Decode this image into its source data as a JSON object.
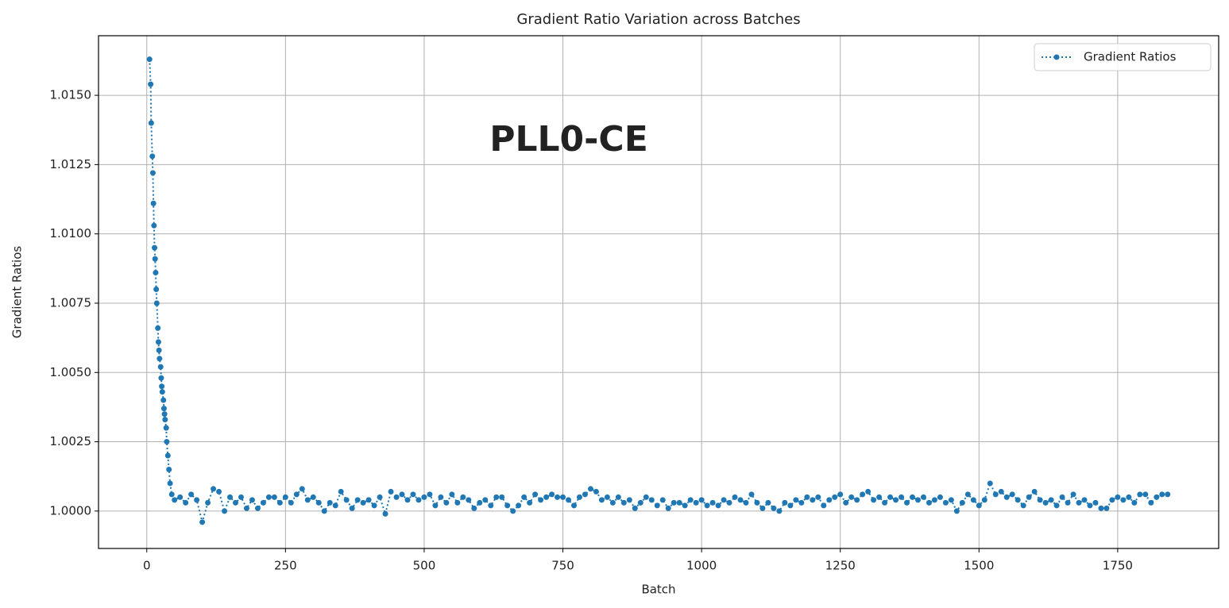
{
  "chart_data": {
    "type": "line",
    "title": "Gradient Ratio Variation across Batches",
    "x_label": "Batch",
    "y_label": "Gradient Ratios",
    "annotation": "PLL0-CE",
    "x": [
      5,
      7,
      8,
      10,
      11,
      12,
      13,
      14,
      15,
      16,
      17,
      18,
      20,
      21,
      22,
      23,
      25,
      26,
      27,
      28,
      30,
      31,
      32,
      33,
      35,
      36,
      38,
      40,
      42,
      45,
      50,
      60,
      70,
      80,
      90,
      100,
      110,
      120,
      130,
      140,
      150,
      160,
      170,
      180,
      190,
      200,
      210,
      220,
      230,
      240,
      250,
      260,
      270,
      280,
      290,
      300,
      310,
      320,
      330,
      340,
      350,
      360,
      370,
      380,
      390,
      400,
      410,
      420,
      430,
      440,
      450,
      460,
      470,
      480,
      490,
      500,
      510,
      520,
      530,
      540,
      550,
      560,
      570,
      580,
      590,
      600,
      610,
      620,
      630,
      640,
      650,
      660,
      670,
      680,
      690,
      700,
      710,
      720,
      730,
      740,
      750,
      760,
      770,
      780,
      790,
      800,
      810,
      820,
      830,
      840,
      850,
      860,
      870,
      880,
      890,
      900,
      910,
      920,
      930,
      940,
      950,
      960,
      970,
      980,
      990,
      1000,
      1010,
      1020,
      1030,
      1040,
      1050,
      1060,
      1070,
      1080,
      1090,
      1100,
      1110,
      1120,
      1130,
      1140,
      1150,
      1160,
      1170,
      1180,
      1190,
      1200,
      1210,
      1220,
      1230,
      1240,
      1250,
      1260,
      1270,
      1280,
      1290,
      1300,
      1310,
      1320,
      1330,
      1340,
      1350,
      1360,
      1370,
      1380,
      1390,
      1400,
      1410,
      1420,
      1430,
      1440,
      1450,
      1460,
      1470,
      1480,
      1490,
      1500,
      1510,
      1520,
      1530,
      1540,
      1550,
      1560,
      1570,
      1580,
      1590,
      1600,
      1610,
      1620,
      1630,
      1640,
      1650,
      1660,
      1670,
      1680,
      1690,
      1700,
      1710,
      1720,
      1730,
      1740,
      1750,
      1760,
      1770,
      1780,
      1790,
      1800,
      1810,
      1820,
      1830,
      1840
    ],
    "series": [
      {
        "name": "Gradient Ratios",
        "color": "#1f77b4",
        "values": [
          1.0163,
          1.0154,
          1.014,
          1.0128,
          1.0122,
          1.0111,
          1.0103,
          1.0095,
          1.0091,
          1.0086,
          1.008,
          1.0075,
          1.0066,
          1.0061,
          1.0058,
          1.0055,
          1.0052,
          1.0048,
          1.0045,
          1.0043,
          1.004,
          1.0037,
          1.0035,
          1.0033,
          1.003,
          1.0025,
          1.002,
          1.0015,
          1.001,
          1.0006,
          1.0004,
          1.0005,
          1.0003,
          1.0006,
          1.0004,
          0.9996,
          1.0003,
          1.0008,
          1.0007,
          1.0,
          1.0005,
          1.0003,
          1.0005,
          1.0001,
          1.0004,
          1.0001,
          1.0003,
          1.0005,
          1.0005,
          1.0003,
          1.0005,
          1.0003,
          1.0006,
          1.0008,
          1.0004,
          1.0005,
          1.0003,
          1.0,
          1.0003,
          1.0002,
          1.0007,
          1.0004,
          1.0001,
          1.0004,
          1.0003,
          1.0004,
          1.0002,
          1.0005,
          0.9999,
          1.0007,
          1.0005,
          1.0006,
          1.0004,
          1.0006,
          1.0004,
          1.0005,
          1.0006,
          1.0002,
          1.0005,
          1.0003,
          1.0006,
          1.0003,
          1.0005,
          1.0004,
          1.0001,
          1.0003,
          1.0004,
          1.0002,
          1.0005,
          1.0005,
          1.0002,
          1.0,
          1.0002,
          1.0005,
          1.0003,
          1.0006,
          1.0004,
          1.0005,
          1.0006,
          1.0005,
          1.0005,
          1.0004,
          1.0002,
          1.0005,
          1.0006,
          1.0008,
          1.0007,
          1.0004,
          1.0005,
          1.0003,
          1.0005,
          1.0003,
          1.0004,
          1.0001,
          1.0003,
          1.0005,
          1.0004,
          1.0002,
          1.0004,
          1.0001,
          1.0003,
          1.0003,
          1.0002,
          1.0004,
          1.0003,
          1.0004,
          1.0002,
          1.0003,
          1.0002,
          1.0004,
          1.0003,
          1.0005,
          1.0004,
          1.0003,
          1.0006,
          1.0003,
          1.0001,
          1.0003,
          1.0001,
          1.0,
          1.0003,
          1.0002,
          1.0004,
          1.0003,
          1.0005,
          1.0004,
          1.0005,
          1.0002,
          1.0004,
          1.0005,
          1.0006,
          1.0003,
          1.0005,
          1.0004,
          1.0006,
          1.0007,
          1.0004,
          1.0005,
          1.0003,
          1.0005,
          1.0004,
          1.0005,
          1.0003,
          1.0005,
          1.0004,
          1.0005,
          1.0003,
          1.0004,
          1.0005,
          1.0003,
          1.0004,
          1.0,
          1.0003,
          1.0006,
          1.0004,
          1.0002,
          1.0004,
          1.001,
          1.0006,
          1.0007,
          1.0005,
          1.0006,
          1.0004,
          1.0002,
          1.0005,
          1.0007,
          1.0004,
          1.0003,
          1.0004,
          1.0002,
          1.0005,
          1.0003,
          1.0006,
          1.0003,
          1.0004,
          1.0002,
          1.0003,
          1.0001,
          1.0001,
          1.0004,
          1.0005,
          1.0004,
          1.0005,
          1.0003,
          1.0006,
          1.0006,
          1.0003,
          1.0005,
          1.0006,
          1.0006
        ]
      }
    ],
    "xlim": [
      -87,
      1932
    ],
    "ylim": [
      0.99865,
      1.01715
    ],
    "xticks": [
      0,
      250,
      500,
      750,
      1000,
      1250,
      1500,
      1750
    ],
    "yticks": [
      {
        "value": 1.0,
        "label": "1.0000"
      },
      {
        "value": 1.0025,
        "label": "1.0025"
      },
      {
        "value": 1.005,
        "label": "1.0050"
      },
      {
        "value": 1.0075,
        "label": "1.0075"
      },
      {
        "value": 1.01,
        "label": "1.0100"
      },
      {
        "value": 1.0125,
        "label": "1.0125"
      },
      {
        "value": 1.015,
        "label": "1.0150"
      }
    ],
    "grid": true,
    "legend": "upper right",
    "annotation_color": "#e8202a"
  }
}
